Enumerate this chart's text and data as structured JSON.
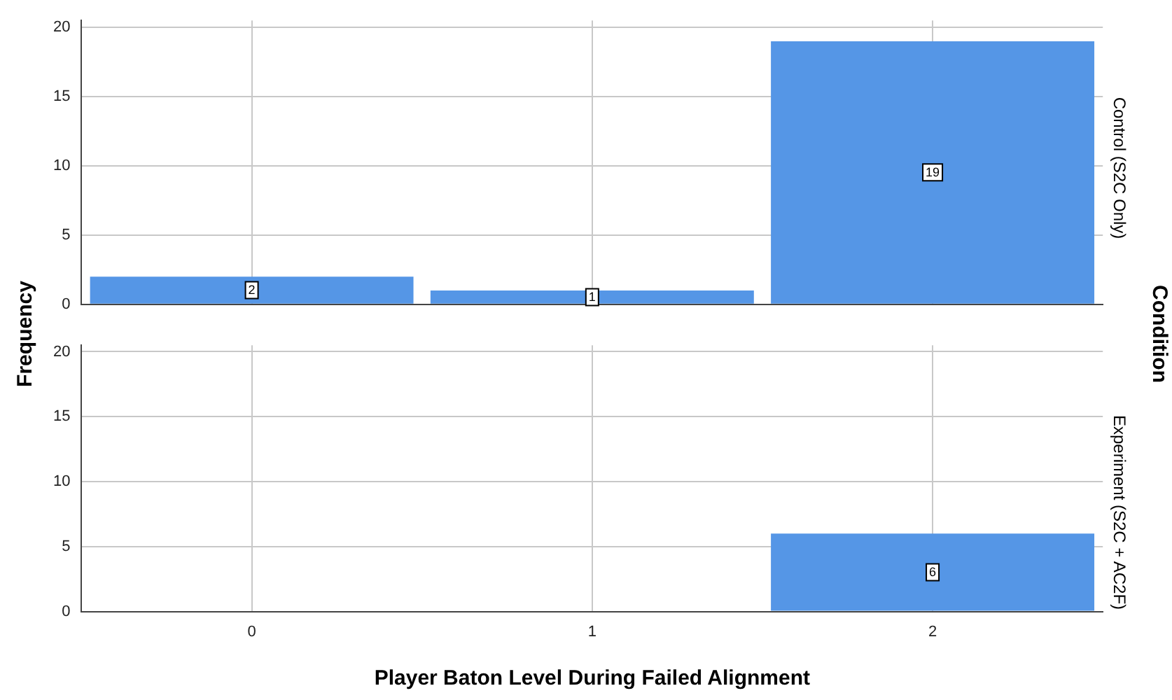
{
  "chart_data": [
    {
      "type": "bar",
      "title": "Control (S2C Only)",
      "ylabel": "Frequency",
      "annotations": [
        "Condition"
      ],
      "categories": [
        "0",
        "1",
        "2"
      ],
      "values": [
        2,
        1,
        19
      ],
      "value_labels": [
        "2",
        "1",
        "19"
      ],
      "color": "#5596e6",
      "ylim": [
        0,
        20.5
      ],
      "yticks": [
        0,
        5,
        10,
        15,
        20
      ],
      "grid": true,
      "tick_labels": "y"
    },
    {
      "type": "bar",
      "title": "Experiment (S2C + AC2F)",
      "xlabel": "Player Baton Level During Failed Alignment",
      "categories": [
        "0",
        "1",
        "2"
      ],
      "values": [
        0,
        0,
        6
      ],
      "value_labels": [
        null,
        null,
        "6"
      ],
      "color": "#5596e6",
      "ylim": [
        0,
        20.5
      ],
      "yticks": [
        0,
        5,
        10,
        15,
        20
      ],
      "grid": true
    }
  ]
}
